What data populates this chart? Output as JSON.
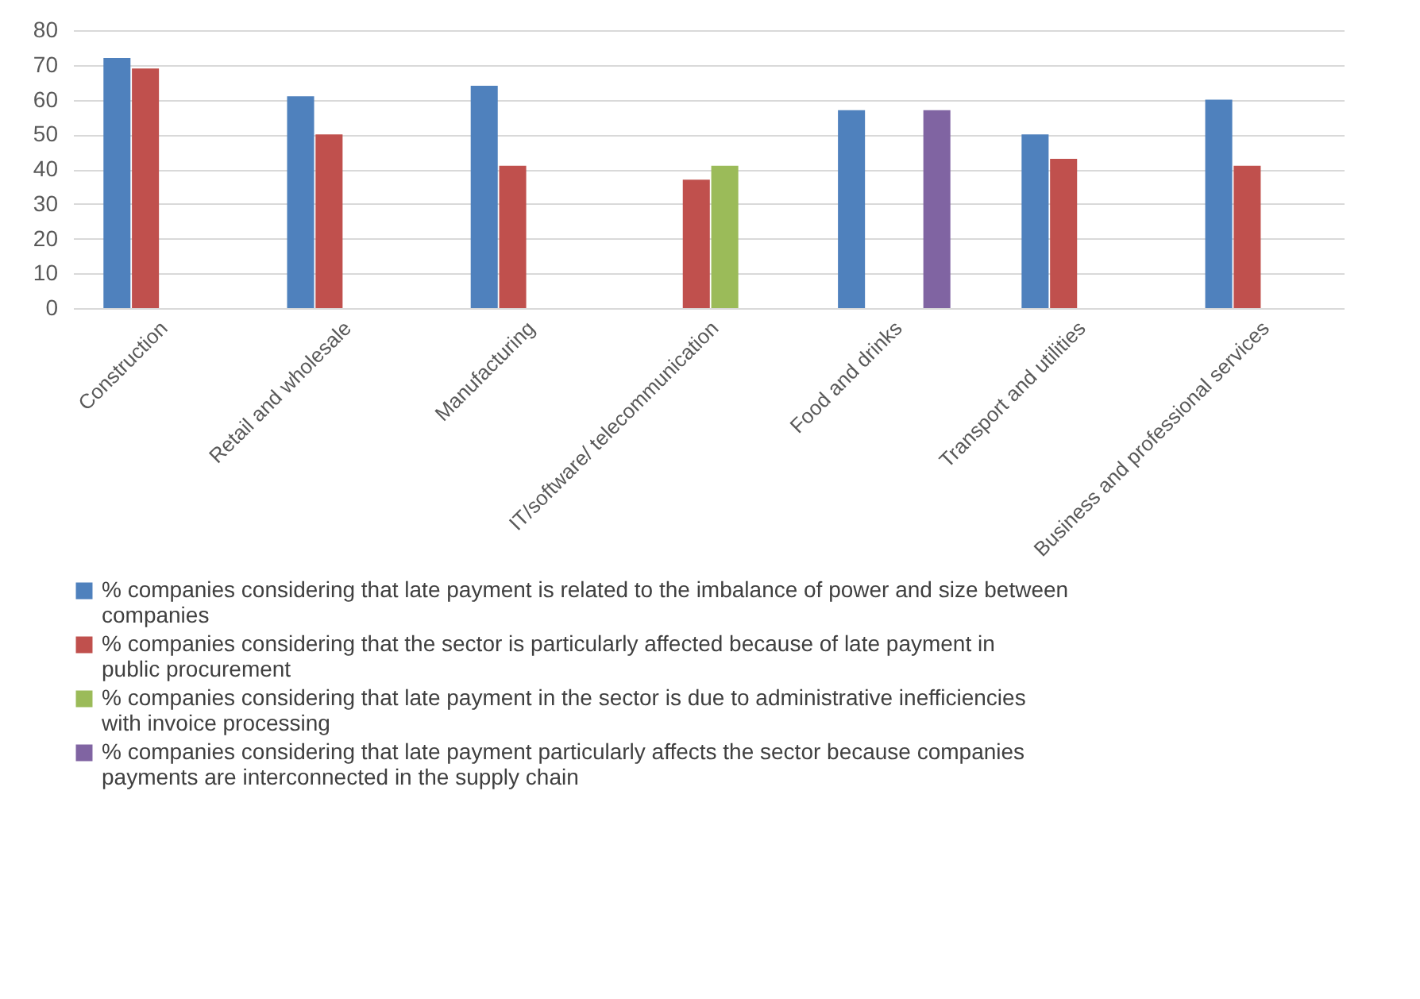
{
  "chart_data": {
    "type": "bar",
    "categories": [
      "Construction",
      "Retail and wholesale",
      "Manufacturing",
      "IT/software/ telecommunication",
      "Food and drinks",
      "Transport and utilities",
      "Business and professional services"
    ],
    "series": [
      {
        "name": "% companies considering that late payment is related to the imbalance of power and size between companies",
        "color": "#4f81bd",
        "values": [
          72,
          61,
          64,
          null,
          57,
          50,
          60
        ]
      },
      {
        "name": "% companies considering that the sector is particularly affected because of late payment in public procurement",
        "color": "#c0504d",
        "values": [
          69,
          50,
          41,
          37,
          null,
          43,
          41
        ]
      },
      {
        "name": "% companies considering that late payment in the sector is due to administrative inefficiencies with invoice processing",
        "color": "#9bbb59",
        "values": [
          null,
          null,
          null,
          41,
          null,
          null,
          null
        ]
      },
      {
        "name": "% companies considering that late payment particularly affects the sector because companies payments are interconnected in the supply chain",
        "color": "#8064a2",
        "values": [
          null,
          null,
          null,
          null,
          57,
          null,
          null
        ]
      }
    ],
    "ylim": [
      0,
      80
    ],
    "yticks": [
      0,
      10,
      20,
      30,
      40,
      50,
      60,
      70,
      80
    ],
    "grid": "y",
    "legend": "bottom"
  }
}
